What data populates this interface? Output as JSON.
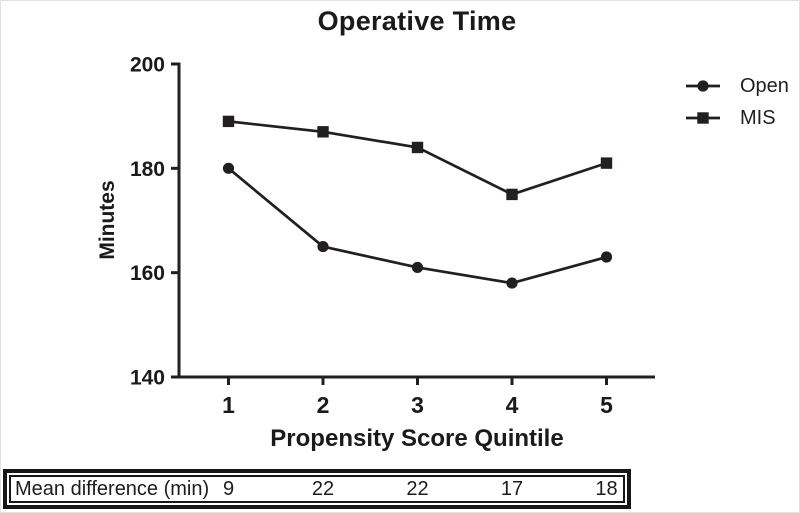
{
  "chart_data": {
    "type": "line",
    "title": "Operative Time",
    "xlabel": "Propensity Score Quintile",
    "ylabel": "Minutes",
    "categories": [
      "1",
      "2",
      "3",
      "4",
      "5"
    ],
    "series": [
      {
        "name": "Open",
        "marker": "circle",
        "values": [
          180,
          165,
          161,
          158,
          163
        ]
      },
      {
        "name": "MIS",
        "marker": "square",
        "values": [
          189,
          187,
          184,
          175,
          181
        ]
      }
    ],
    "ylim": [
      140,
      200
    ],
    "yticks": [
      140,
      160,
      180,
      200
    ],
    "legend": [
      "Open",
      "MIS"
    ],
    "legend_position": "right",
    "grid": false
  },
  "table": {
    "label": "Mean difference (min)",
    "values": [
      "9",
      "22",
      "22",
      "17",
      "18"
    ]
  },
  "colors": {
    "line": "#231f20",
    "text": "#1a1a1a",
    "background": "#ffffff"
  }
}
